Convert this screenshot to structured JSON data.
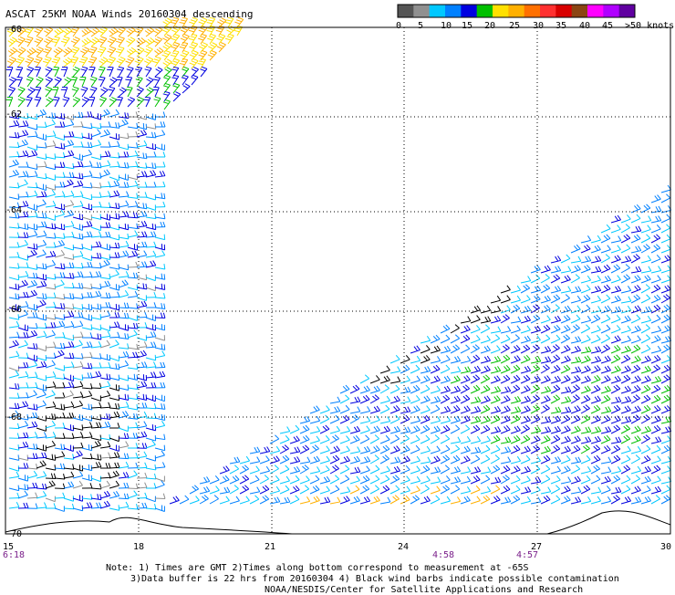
{
  "title": "ASCAT 25KM NOAA Winds 20160304 descending",
  "legend": {
    "colors": [
      "#555555",
      "#909090",
      "#00c8ff",
      "#0080ff",
      "#0000e0",
      "#00c000",
      "#ffe000",
      "#ffb000",
      "#ff7000",
      "#ff3030",
      "#d80000",
      "#8b4513",
      "#ff00ff",
      "#b000ff",
      "#6000a0"
    ],
    "labels": [
      "0",
      "5",
      "10",
      "15",
      "20",
      "25",
      "30",
      "35",
      "40",
      "45",
      ">50 knots"
    ]
  },
  "axes": {
    "x_ticks": [
      "15",
      "18",
      "21",
      "24",
      "27",
      "30"
    ],
    "y_ticks": [
      "-60",
      "-62",
      "-64",
      "-66",
      "-68",
      "-70"
    ],
    "x_range": [
      15,
      30
    ],
    "y_range": [
      -70,
      -60
    ]
  },
  "times": [
    "6:18",
    "4:58",
    "4:57"
  ],
  "notes": [
    "Note: 1) Times are GMT 2)Times along bottom correspond to measurement at -65S",
    "3)Data buffer is 22 hrs from 20160304 4) Black wind barbs indicate possible contamination",
    "NOAA/NESDIS/Center for Satellite Applications and Research"
  ]
}
